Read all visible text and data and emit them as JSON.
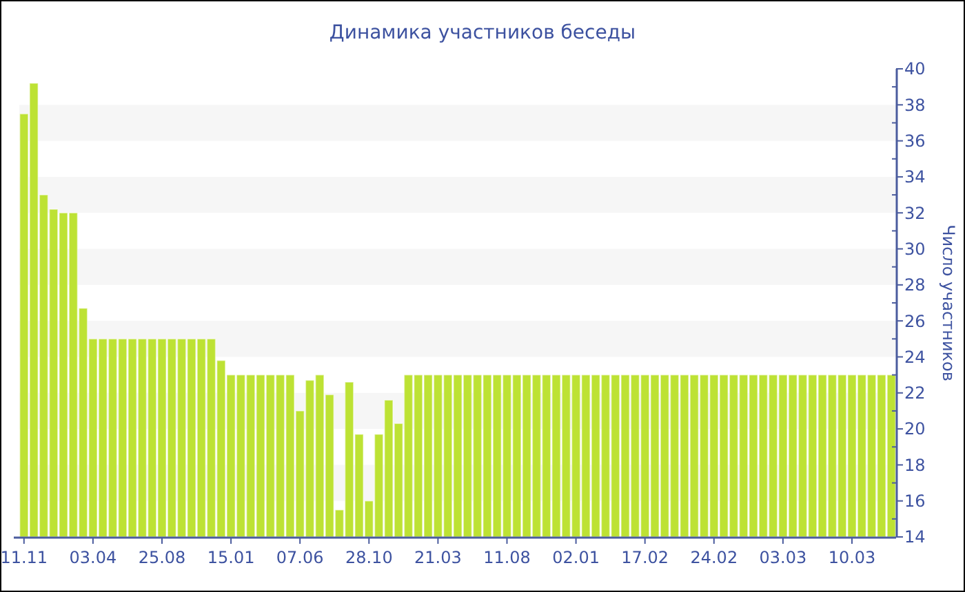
{
  "chart_data": {
    "type": "bar",
    "title": "Динамика участников беседы",
    "ylabel": "Число участников",
    "categories": [
      "11.11",
      null,
      null,
      null,
      null,
      null,
      null,
      "03.04",
      null,
      null,
      null,
      null,
      null,
      null,
      "25.08",
      null,
      null,
      null,
      null,
      null,
      null,
      "15.01",
      null,
      null,
      null,
      null,
      null,
      null,
      "07.06",
      null,
      null,
      null,
      null,
      null,
      null,
      "28.10",
      null,
      null,
      null,
      null,
      null,
      null,
      "21.03",
      null,
      null,
      null,
      null,
      null,
      null,
      "11.08",
      null,
      null,
      null,
      null,
      null,
      null,
      "02.01",
      null,
      null,
      null,
      null,
      null,
      null,
      "17.02",
      null,
      null,
      null,
      null,
      null,
      null,
      "24.02",
      null,
      null,
      null,
      null,
      null,
      null,
      "03.03",
      null,
      null,
      null,
      null,
      null,
      null,
      "10.03",
      null,
      null,
      null,
      null
    ],
    "values": [
      37.5,
      39.2,
      33.0,
      32.2,
      32.0,
      32.0,
      26.7,
      25,
      25,
      25,
      25,
      25,
      25,
      25,
      25,
      25,
      25,
      25,
      25,
      25,
      23.8,
      23,
      23,
      23,
      23,
      23,
      23,
      23,
      21.0,
      22.7,
      23,
      21.9,
      15.5,
      22.6,
      19.7,
      16.0,
      19.7,
      21.6,
      20.3,
      23,
      23,
      23,
      23,
      23,
      23,
      23,
      23,
      23,
      23,
      23,
      23,
      23,
      23,
      23,
      23,
      23,
      23,
      23,
      23,
      23,
      23,
      23,
      23,
      23,
      23,
      23,
      23,
      23,
      23,
      23,
      23,
      23,
      23,
      23,
      23,
      23,
      23,
      23,
      23,
      23,
      23,
      23,
      23,
      23,
      23,
      23,
      23,
      23,
      23
    ],
    "color": "#bde234",
    "ylim": [
      14,
      40
    ],
    "yticks": [
      14,
      {
        "value": 15,
        "label": null
      },
      16,
      {
        "value": 17,
        "label": null
      },
      18,
      {
        "value": 19,
        "label": null
      },
      20,
      {
        "value": 21,
        "label": null
      },
      22,
      {
        "value": 23,
        "label": null
      },
      24,
      {
        "value": 25,
        "label": null
      },
      26,
      {
        "value": 27,
        "label": null
      },
      28,
      {
        "value": 29,
        "label": null
      },
      30,
      {
        "value": 31,
        "label": null
      },
      32,
      {
        "value": 33,
        "label": null
      },
      34,
      {
        "value": 35,
        "label": null
      },
      36,
      {
        "value": 37,
        "label": null
      },
      38,
      {
        "value": 39,
        "label": null
      },
      40
    ],
    "bands": [
      {
        "axis": "y",
        "from": 16,
        "to": 18,
        "color": "#f6f6f6"
      },
      {
        "axis": "y",
        "from": 20,
        "to": 22,
        "color": "#f6f6f6"
      },
      {
        "axis": "y",
        "from": 24,
        "to": 26,
        "color": "#f6f6f6"
      },
      {
        "axis": "y",
        "from": 28,
        "to": 30,
        "color": "#f6f6f6"
      },
      {
        "axis": "y",
        "from": 32,
        "to": 34,
        "color": "#f6f6f6"
      },
      {
        "axis": "y",
        "from": 36,
        "to": 38,
        "color": "#f6f6f6"
      }
    ]
  }
}
